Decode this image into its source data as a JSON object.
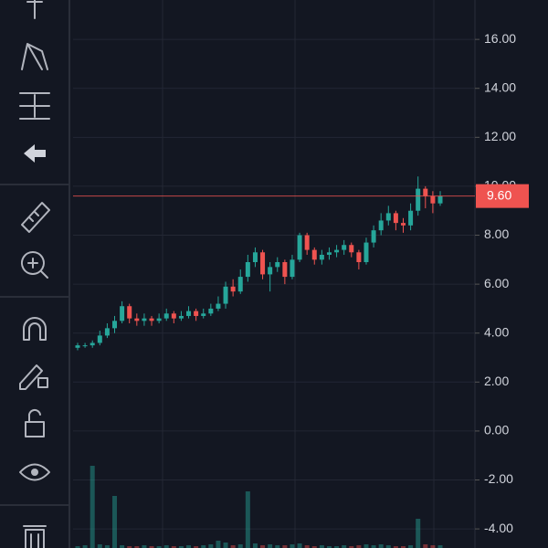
{
  "chart_data": {
    "type": "candlestick",
    "open": [
      3.4,
      3.5,
      3.5,
      3.6,
      3.9,
      4.2,
      4.5,
      5.1,
      4.6,
      4.5,
      4.6,
      4.5,
      4.6,
      4.8,
      4.6,
      4.7,
      4.9,
      4.7,
      4.8,
      5.0,
      5.2,
      5.9,
      5.7,
      6.3,
      6.9,
      7.3,
      6.4,
      6.7,
      6.9,
      6.3,
      7.0,
      8.0,
      7.4,
      7.0,
      7.2,
      7.3,
      7.4,
      7.6,
      7.3,
      6.9,
      7.7,
      8.2,
      8.6,
      8.9,
      8.5,
      8.4,
      9.0,
      9.9,
      9.6,
      9.3
    ],
    "high": [
      3.6,
      3.6,
      3.7,
      4.1,
      4.4,
      4.7,
      5.3,
      5.2,
      4.8,
      4.8,
      4.7,
      4.8,
      5.0,
      4.9,
      4.9,
      5.1,
      5.0,
      5.0,
      5.2,
      5.5,
      6.1,
      6.2,
      6.6,
      7.2,
      7.5,
      7.4,
      6.9,
      7.1,
      7.0,
      7.2,
      8.1,
      8.1,
      7.5,
      7.4,
      7.5,
      7.6,
      7.8,
      7.7,
      7.4,
      7.9,
      8.4,
      8.9,
      9.2,
      9.0,
      8.7,
      9.3,
      10.4,
      10.0,
      9.8,
      9.8
    ],
    "low": [
      3.3,
      3.4,
      3.4,
      3.5,
      3.8,
      4.0,
      4.4,
      4.4,
      4.3,
      4.3,
      4.3,
      4.4,
      4.5,
      4.4,
      4.5,
      4.6,
      4.5,
      4.6,
      4.7,
      4.9,
      5.0,
      5.5,
      5.6,
      6.1,
      6.7,
      6.2,
      5.7,
      6.5,
      6.0,
      6.2,
      6.9,
      7.2,
      6.8,
      6.8,
      7.0,
      7.1,
      7.2,
      7.1,
      6.6,
      6.8,
      7.5,
      8.0,
      8.4,
      8.2,
      8.1,
      8.2,
      8.8,
      9.1,
      8.9,
      9.2
    ],
    "close": [
      3.5,
      3.5,
      3.6,
      3.9,
      4.2,
      4.5,
      5.1,
      4.6,
      4.5,
      4.6,
      4.5,
      4.6,
      4.8,
      4.6,
      4.7,
      4.9,
      4.7,
      4.8,
      5.0,
      5.2,
      5.9,
      5.7,
      6.3,
      6.9,
      7.3,
      6.4,
      6.7,
      6.9,
      6.3,
      7.0,
      8.0,
      7.4,
      7.0,
      7.2,
      7.3,
      7.4,
      7.6,
      7.3,
      6.9,
      7.7,
      8.2,
      8.6,
      8.9,
      8.5,
      8.4,
      9.0,
      9.9,
      9.6,
      9.3,
      9.6
    ],
    "volume": [
      2,
      3,
      90,
      4,
      3,
      57,
      3,
      2,
      2,
      3,
      2,
      2,
      3,
      2,
      2,
      3,
      2,
      3,
      4,
      8,
      6,
      3,
      4,
      62,
      5,
      3,
      4,
      3,
      3,
      4,
      5,
      3,
      2,
      3,
      2,
      2,
      3,
      2,
      3,
      4,
      3,
      4,
      3,
      2,
      2,
      3,
      32,
      4,
      3,
      3
    ],
    "up_color": "#26a69a",
    "down_color": "#ef5350",
    "ylim": [
      -4.78,
      17.61
    ],
    "yticks": [
      {
        "value": -4,
        "label": "-4.00"
      },
      {
        "value": -2,
        "label": "-2.00"
      },
      {
        "value": 0,
        "label": "0.00"
      },
      {
        "value": 2,
        "label": "2.00"
      },
      {
        "value": 4,
        "label": "4.00"
      },
      {
        "value": 6,
        "label": "6.00"
      },
      {
        "value": 8,
        "label": "8.00"
      },
      {
        "value": 10,
        "label": "10.00"
      },
      {
        "value": 12,
        "label": "12.00"
      },
      {
        "value": 14,
        "label": "14.00"
      },
      {
        "value": 16,
        "label": "16.00"
      }
    ],
    "grid": true,
    "last_price": 9.6,
    "last_price_label": "9.60"
  }
}
